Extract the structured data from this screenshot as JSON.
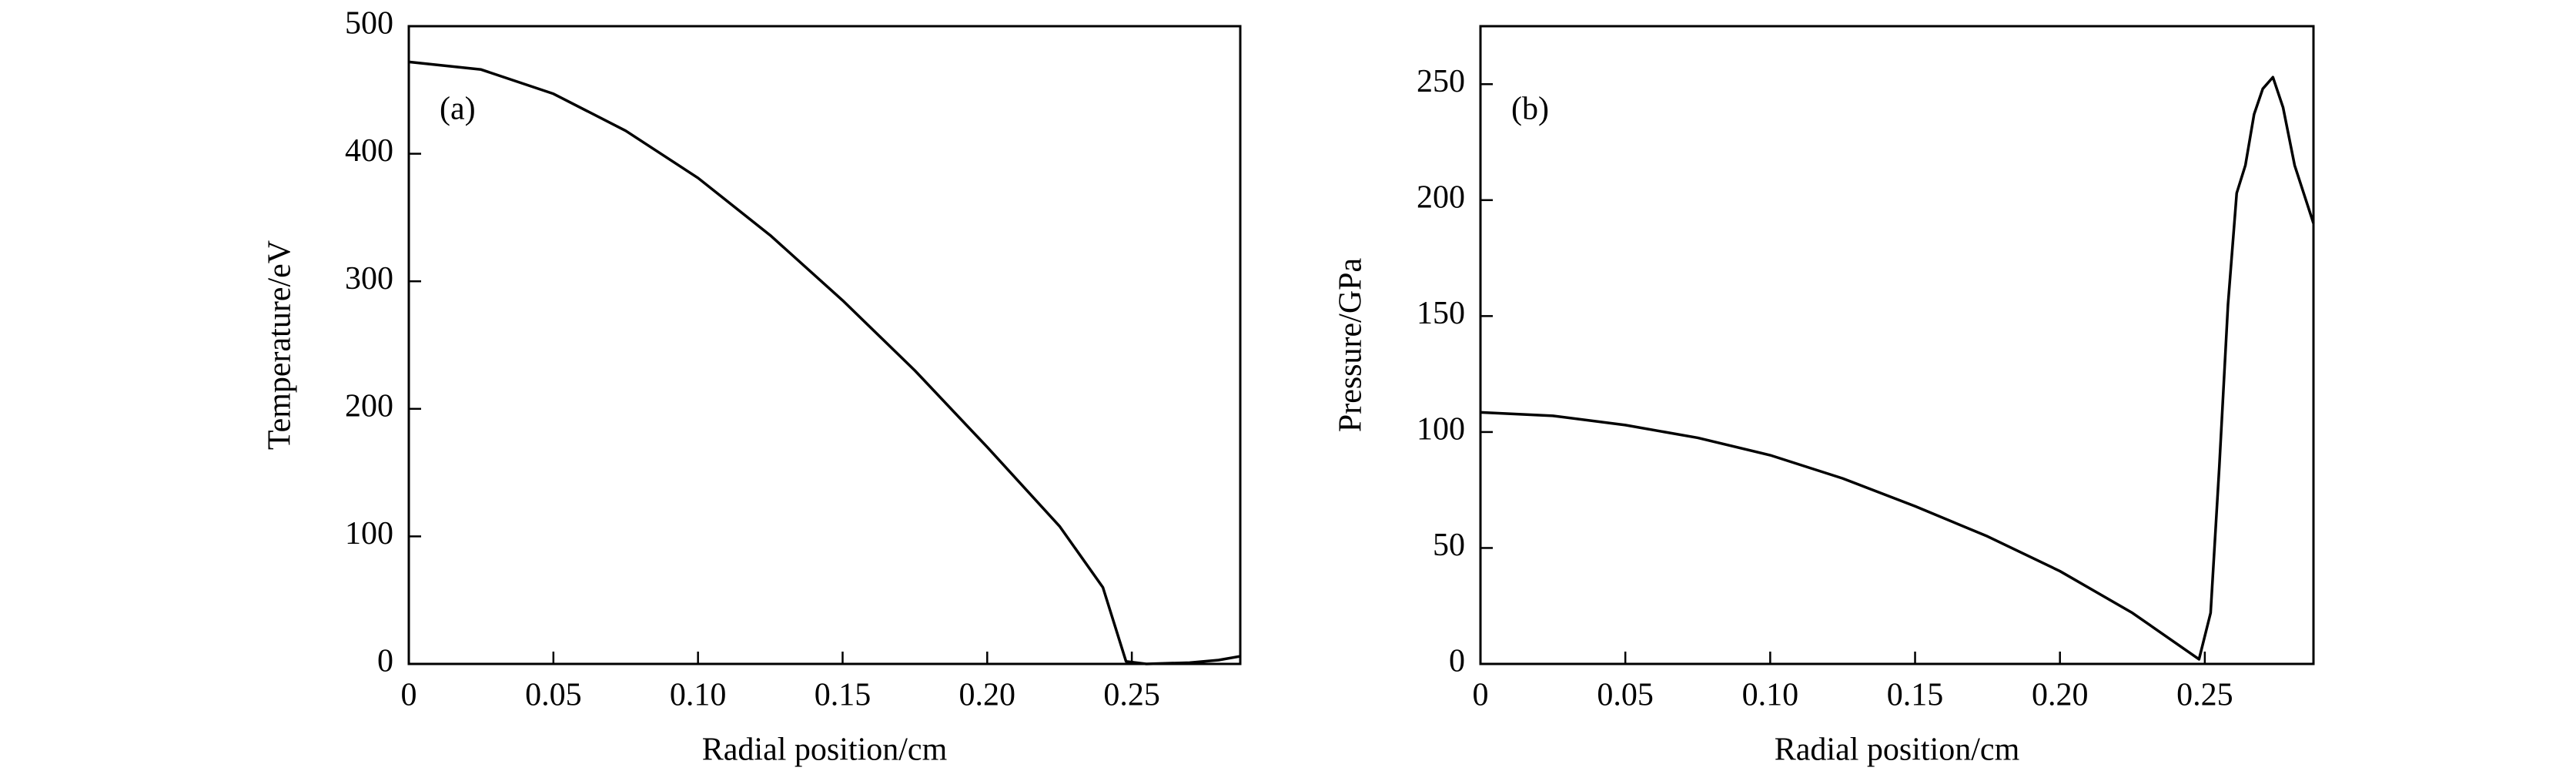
{
  "chart_data": [
    {
      "type": "line",
      "annotation": "(a)",
      "xlabel": "Radial position/cm",
      "ylabel": "Temperature/eV",
      "color": "#000000",
      "x": [
        0,
        0.025,
        0.05,
        0.075,
        0.1,
        0.125,
        0.15,
        0.175,
        0.2,
        0.225,
        0.24,
        0.248,
        0.255,
        0.27,
        0.28,
        0.2875
      ],
      "values": [
        472,
        466,
        447,
        418,
        381,
        336,
        285,
        230,
        170,
        108,
        60,
        2,
        0,
        1,
        3,
        6
      ],
      "xlim": [
        0,
        0.2875
      ],
      "ylim": [
        0,
        500
      ],
      "xticks": [
        0,
        0.05,
        {
          "value": 0.1,
          "label": "0.10"
        },
        0.15,
        {
          "value": 0.2,
          "label": "0.20"
        },
        0.25
      ],
      "yticks": [
        0,
        100,
        200,
        300,
        400,
        500
      ]
    },
    {
      "type": "line",
      "annotation": "(b)",
      "xlabel": "Radial position/cm",
      "ylabel": "Pressure/GPa",
      "color": "#000000",
      "x": [
        0,
        0.025,
        0.05,
        0.075,
        0.1,
        0.125,
        0.15,
        0.175,
        0.2,
        0.225,
        0.248,
        0.252,
        0.255,
        0.258,
        0.261,
        0.264,
        0.267,
        0.27,
        0.2735,
        0.277,
        0.281,
        0.2875
      ],
      "values": [
        108.5,
        107,
        103,
        97.5,
        90,
        80,
        68,
        55,
        40,
        22,
        2,
        22,
        85,
        155,
        203,
        215,
        237,
        248,
        253,
        240,
        215,
        190
      ],
      "xlim": [
        0,
        0.2875
      ],
      "ylim": [
        0,
        275
      ],
      "xticks": [
        0,
        0.05,
        {
          "value": 0.1,
          "label": "0.10"
        },
        0.15,
        {
          "value": 0.2,
          "label": "0.20"
        },
        0.25
      ],
      "yticks": [
        0,
        50,
        100,
        150,
        200,
        250
      ]
    }
  ]
}
